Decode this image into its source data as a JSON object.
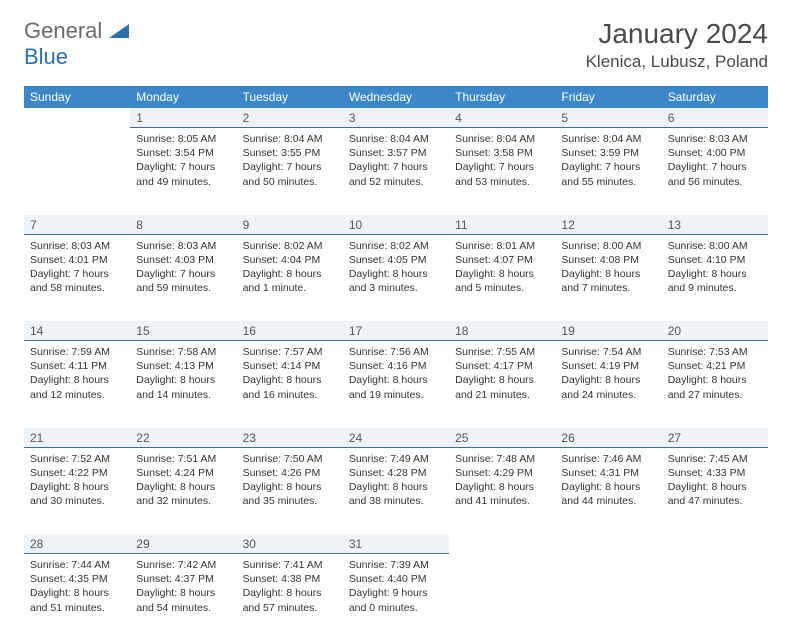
{
  "logo": {
    "word1": "General",
    "word2": "Blue"
  },
  "header": {
    "title": "January 2024",
    "location": "Klenica, Lubusz, Poland"
  },
  "colors": {
    "header_bg": "#3b87c8",
    "header_text": "#ffffff",
    "daynum_bg": "#eef3f7",
    "daynum_border": "#3b6fa0",
    "logo_gray": "#6a6a6a",
    "logo_blue": "#2f6fa8",
    "body_text": "#333333"
  },
  "daysOfWeek": [
    "Sunday",
    "Monday",
    "Tuesday",
    "Wednesday",
    "Thursday",
    "Friday",
    "Saturday"
  ],
  "weeks": [
    {
      "nums": [
        "",
        "1",
        "2",
        "3",
        "4",
        "5",
        "6"
      ],
      "cells": [
        null,
        {
          "sunrise": "8:05 AM",
          "sunset": "3:54 PM",
          "daylight": "7 hours and 49 minutes."
        },
        {
          "sunrise": "8:04 AM",
          "sunset": "3:55 PM",
          "daylight": "7 hours and 50 minutes."
        },
        {
          "sunrise": "8:04 AM",
          "sunset": "3:57 PM",
          "daylight": "7 hours and 52 minutes."
        },
        {
          "sunrise": "8:04 AM",
          "sunset": "3:58 PM",
          "daylight": "7 hours and 53 minutes."
        },
        {
          "sunrise": "8:04 AM",
          "sunset": "3:59 PM",
          "daylight": "7 hours and 55 minutes."
        },
        {
          "sunrise": "8:03 AM",
          "sunset": "4:00 PM",
          "daylight": "7 hours and 56 minutes."
        }
      ]
    },
    {
      "nums": [
        "7",
        "8",
        "9",
        "10",
        "11",
        "12",
        "13"
      ],
      "cells": [
        {
          "sunrise": "8:03 AM",
          "sunset": "4:01 PM",
          "daylight": "7 hours and 58 minutes."
        },
        {
          "sunrise": "8:03 AM",
          "sunset": "4:03 PM",
          "daylight": "7 hours and 59 minutes."
        },
        {
          "sunrise": "8:02 AM",
          "sunset": "4:04 PM",
          "daylight": "8 hours and 1 minute."
        },
        {
          "sunrise": "8:02 AM",
          "sunset": "4:05 PM",
          "daylight": "8 hours and 3 minutes."
        },
        {
          "sunrise": "8:01 AM",
          "sunset": "4:07 PM",
          "daylight": "8 hours and 5 minutes."
        },
        {
          "sunrise": "8:00 AM",
          "sunset": "4:08 PM",
          "daylight": "8 hours and 7 minutes."
        },
        {
          "sunrise": "8:00 AM",
          "sunset": "4:10 PM",
          "daylight": "8 hours and 9 minutes."
        }
      ]
    },
    {
      "nums": [
        "14",
        "15",
        "16",
        "17",
        "18",
        "19",
        "20"
      ],
      "cells": [
        {
          "sunrise": "7:59 AM",
          "sunset": "4:11 PM",
          "daylight": "8 hours and 12 minutes."
        },
        {
          "sunrise": "7:58 AM",
          "sunset": "4:13 PM",
          "daylight": "8 hours and 14 minutes."
        },
        {
          "sunrise": "7:57 AM",
          "sunset": "4:14 PM",
          "daylight": "8 hours and 16 minutes."
        },
        {
          "sunrise": "7:56 AM",
          "sunset": "4:16 PM",
          "daylight": "8 hours and 19 minutes."
        },
        {
          "sunrise": "7:55 AM",
          "sunset": "4:17 PM",
          "daylight": "8 hours and 21 minutes."
        },
        {
          "sunrise": "7:54 AM",
          "sunset": "4:19 PM",
          "daylight": "8 hours and 24 minutes."
        },
        {
          "sunrise": "7:53 AM",
          "sunset": "4:21 PM",
          "daylight": "8 hours and 27 minutes."
        }
      ]
    },
    {
      "nums": [
        "21",
        "22",
        "23",
        "24",
        "25",
        "26",
        "27"
      ],
      "cells": [
        {
          "sunrise": "7:52 AM",
          "sunset": "4:22 PM",
          "daylight": "8 hours and 30 minutes."
        },
        {
          "sunrise": "7:51 AM",
          "sunset": "4:24 PM",
          "daylight": "8 hours and 32 minutes."
        },
        {
          "sunrise": "7:50 AM",
          "sunset": "4:26 PM",
          "daylight": "8 hours and 35 minutes."
        },
        {
          "sunrise": "7:49 AM",
          "sunset": "4:28 PM",
          "daylight": "8 hours and 38 minutes."
        },
        {
          "sunrise": "7:48 AM",
          "sunset": "4:29 PM",
          "daylight": "8 hours and 41 minutes."
        },
        {
          "sunrise": "7:46 AM",
          "sunset": "4:31 PM",
          "daylight": "8 hours and 44 minutes."
        },
        {
          "sunrise": "7:45 AM",
          "sunset": "4:33 PM",
          "daylight": "8 hours and 47 minutes."
        }
      ]
    },
    {
      "nums": [
        "28",
        "29",
        "30",
        "31",
        "",
        "",
        ""
      ],
      "cells": [
        {
          "sunrise": "7:44 AM",
          "sunset": "4:35 PM",
          "daylight": "8 hours and 51 minutes."
        },
        {
          "sunrise": "7:42 AM",
          "sunset": "4:37 PM",
          "daylight": "8 hours and 54 minutes."
        },
        {
          "sunrise": "7:41 AM",
          "sunset": "4:38 PM",
          "daylight": "8 hours and 57 minutes."
        },
        {
          "sunrise": "7:39 AM",
          "sunset": "4:40 PM",
          "daylight": "9 hours and 0 minutes."
        },
        null,
        null,
        null
      ]
    }
  ],
  "labels": {
    "sunrise": "Sunrise:",
    "sunset": "Sunset:",
    "daylight": "Daylight:"
  }
}
